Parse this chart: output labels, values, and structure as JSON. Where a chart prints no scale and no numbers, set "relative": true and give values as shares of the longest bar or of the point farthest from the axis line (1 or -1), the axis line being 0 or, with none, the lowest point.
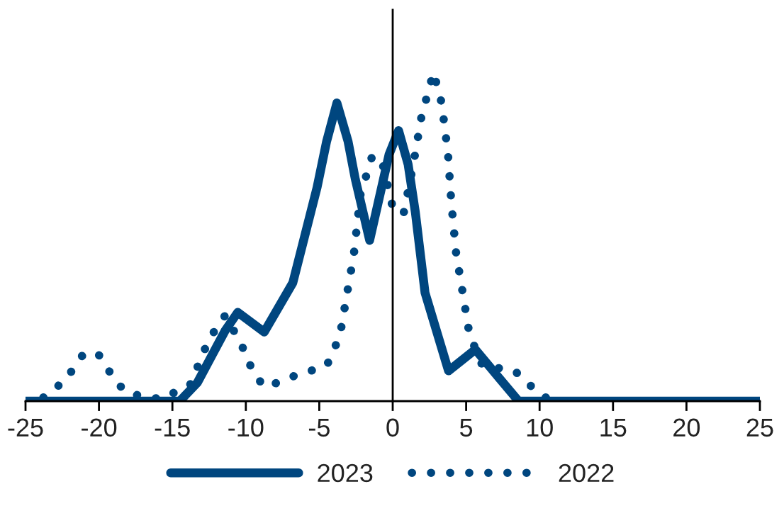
{
  "chart_data": {
    "type": "line",
    "relative": true,
    "xlim": [
      -25,
      25
    ],
    "xticks": [
      -25,
      -20,
      -15,
      -10,
      -5,
      0,
      5,
      10,
      15,
      20,
      25
    ],
    "legend": "bottom",
    "marker": "none",
    "series": [
      {
        "name": "2023",
        "color": "#00467f",
        "line_style": "solid",
        "x": [
          -25,
          -14.5,
          -13.3,
          -11.4,
          -10.55,
          -8.75,
          -6.8,
          -5.15,
          -4.5,
          -3.8,
          -3.04,
          -2.55,
          -1.57,
          -0.25,
          0.4,
          1.05,
          1.54,
          2.2,
          3.8,
          5.63,
          7.25,
          8.57,
          25
        ],
        "values": [
          0,
          0,
          0.056,
          0.215,
          0.27,
          0.21,
          0.36,
          0.65,
          0.79,
          0.907,
          0.79,
          0.676,
          0.489,
          0.75,
          0.823,
          0.72,
          0.575,
          0.33,
          0.092,
          0.157,
          0.07,
          0,
          0
        ]
      },
      {
        "name": "2022",
        "color": "#00467f",
        "line_style": "dotted",
        "x": [
          -25,
          -24.1,
          -22.3,
          -21.0,
          -20.0,
          -18.8,
          -18.0,
          -15.8,
          -13.8,
          -12.5,
          -11.4,
          -10.3,
          -9.4,
          -8.66,
          -6.63,
          -4.5,
          -3.6,
          -3.04,
          -2.65,
          -2.2,
          -1.4,
          -0.75,
          0,
          0.73,
          1.37,
          1.96,
          2.78,
          3.33,
          3.76,
          3.99,
          4.31,
          4.87,
          5.23,
          6.12,
          8.24,
          9.06,
          9.8,
          10.85,
          25
        ],
        "values": [
          0,
          0,
          0.063,
          0.147,
          0.14,
          0.056,
          0.023,
          0.006,
          0.049,
          0.189,
          0.261,
          0.172,
          0.078,
          0.042,
          0.078,
          0.107,
          0.198,
          0.345,
          0.445,
          0.627,
          0.745,
          0.734,
          0.589,
          0.568,
          0.712,
          0.866,
          1.0,
          0.907,
          0.755,
          0.604,
          0.453,
          0.301,
          0.202,
          0.107,
          0.094,
          0.063,
          0.027,
          0,
          0
        ]
      }
    ]
  }
}
